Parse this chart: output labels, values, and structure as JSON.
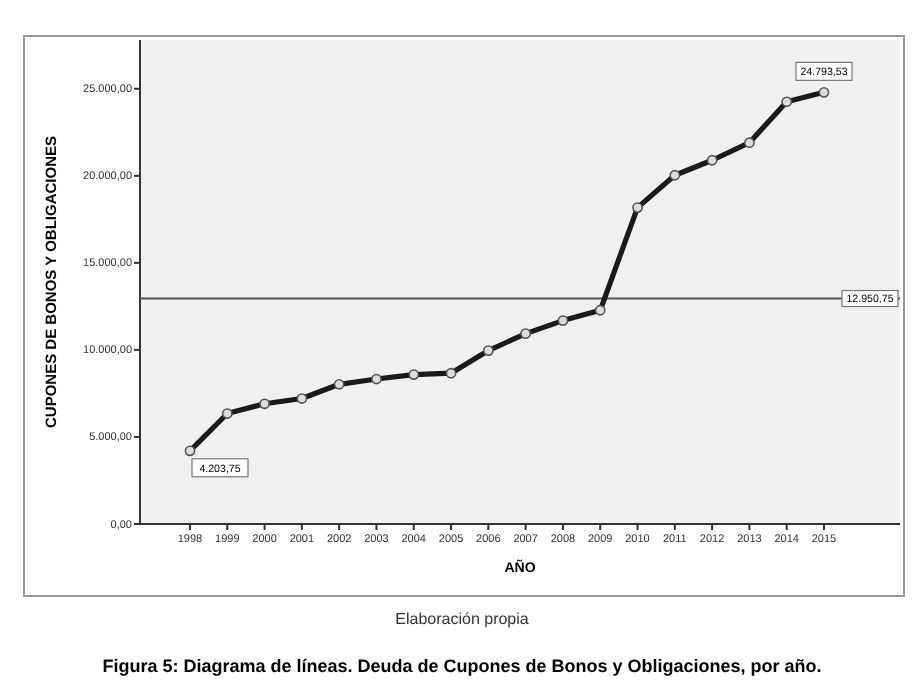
{
  "chart_data": {
    "type": "line",
    "title": "Figura 5: Diagrama de líneas. Deuda de Cupones de Bonos y Obligaciones, por año.",
    "xlabel": "AÑO",
    "ylabel": "CUPONES DE BONOS Y OBLIGACIONES",
    "categories": [
      "1998",
      "1999",
      "2000",
      "2001",
      "2002",
      "2003",
      "2004",
      "2005",
      "2006",
      "2007",
      "2008",
      "2009",
      "2010",
      "2011",
      "2012",
      "2013",
      "2014",
      "2015"
    ],
    "series": [
      {
        "color": "#1a1a1a",
        "values": [
          4203.75,
          6345,
          6905,
          7207,
          8024,
          8326,
          8583,
          8661,
          9960,
          10933,
          11683,
          12276,
          18174,
          20031,
          20893,
          21900,
          24250,
          24793.53
        ]
      }
    ],
    "ylim": [
      0,
      27800
    ],
    "yticks": [
      {
        "value": 0,
        "label": "0,00"
      },
      {
        "value": 5000,
        "label": "5.000,00"
      },
      {
        "value": 10000,
        "label": "10.000,00"
      },
      {
        "value": 15000,
        "label": "15.000,00"
      },
      {
        "value": 20000,
        "label": "20.000,00"
      },
      {
        "value": 25000,
        "label": "25.000,00"
      }
    ],
    "ref_lines": [
      {
        "axis": "y",
        "value": 12950.75,
        "label": "12.950,75",
        "color": "#555555"
      }
    ],
    "annotations": [
      {
        "text": "4.203,75",
        "x": "1998",
        "y": 4203.75
      },
      {
        "text": "24.793,53",
        "x": "2015",
        "y": 24793.53
      },
      "Elaboración propia"
    ],
    "marker": "circle",
    "line_style": "solid",
    "grid": false
  }
}
